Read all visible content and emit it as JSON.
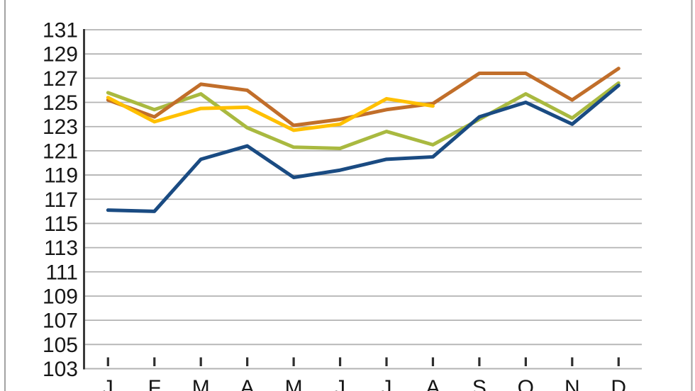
{
  "chart_data": {
    "type": "line",
    "categories": [
      "J",
      "F",
      "M",
      "A",
      "M",
      "J",
      "J",
      "A",
      "S",
      "O",
      "N",
      "D"
    ],
    "series": [
      {
        "name": "olive-green-series",
        "color": "#A9B940",
        "values": [
          125.8,
          124.4,
          125.7,
          122.9,
          121.3,
          121.2,
          122.6,
          121.5,
          123.6,
          125.7,
          123.7,
          126.6
        ]
      },
      {
        "name": "brown-orange-series",
        "color": "#C16E2A",
        "values": [
          125.2,
          123.8,
          126.5,
          126.0,
          123.1,
          123.6,
          124.4,
          124.9,
          127.4,
          127.4,
          125.2,
          127.8
        ]
      },
      {
        "name": "dark-blue-series",
        "color": "#1A4B82",
        "values": [
          116.1,
          116.0,
          120.3,
          121.4,
          118.8,
          119.4,
          120.3,
          120.5,
          123.8,
          125.0,
          123.2,
          126.4
        ]
      },
      {
        "name": "yellow-series",
        "color": "#FFC000",
        "values": [
          125.4,
          123.4,
          124.5,
          124.6,
          122.7,
          123.2,
          125.3,
          124.7
        ]
      }
    ],
    "title": "",
    "xlabel": "",
    "ylabel": "",
    "ylim": [
      103,
      131
    ],
    "ytick_step": 2,
    "yticks": [
      131,
      129,
      127,
      125,
      123,
      121,
      119,
      117,
      115,
      113,
      111,
      109,
      107,
      105,
      103
    ],
    "grid": true,
    "legend": false,
    "line_width": 5
  },
  "style": {
    "background": "#ffffff",
    "grid_color": "#b3b3b3",
    "axis_color": "#3a3a3a",
    "tick_color": "#2e2e2e",
    "text_color": "#161616",
    "frame_border_color": "#a3a3a3"
  }
}
